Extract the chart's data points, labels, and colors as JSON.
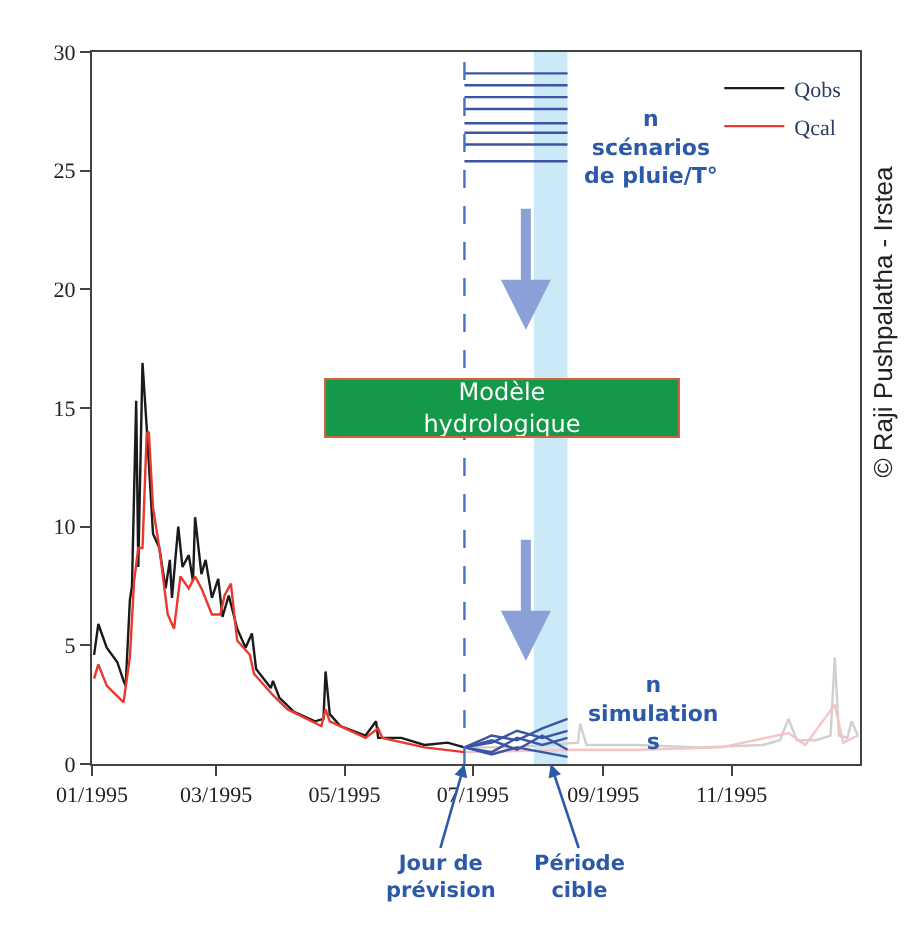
{
  "chart_data": {
    "type": "line",
    "xlim": [
      "1995-01-01",
      "1996-01-01"
    ],
    "xticks": [
      {
        "value": "1995-01-01",
        "label": "01/1995"
      },
      {
        "value": "1995-03-01",
        "label": "03/1995"
      },
      {
        "value": "1995-05-01",
        "label": "05/1995"
      },
      {
        "value": "1995-07-01",
        "label": "07/1995"
      },
      {
        "value": "1995-09-01",
        "label": "09/1995"
      },
      {
        "value": "1995-11-01",
        "label": "11/1995"
      }
    ],
    "ylim": [
      0,
      30
    ],
    "yticks": [
      0,
      5,
      10,
      15,
      20,
      25,
      30
    ],
    "grid": false,
    "legend": "top right",
    "line_style": "solid",
    "marker": "none",
    "series": [
      {
        "name": "Qobs",
        "color": "#1a1a1a",
        "x": [
          "1995-01-02",
          "1995-01-04",
          "1995-01-08",
          "1995-01-13",
          "1995-01-16",
          "1995-01-17",
          "1995-01-19",
          "1995-01-20",
          "1995-01-22",
          "1995-01-23",
          "1995-01-25",
          "1995-01-27",
          "1995-01-30",
          "1995-02-02",
          "1995-02-05",
          "1995-02-07",
          "1995-02-08",
          "1995-02-11",
          "1995-02-13",
          "1995-02-16",
          "1995-02-18",
          "1995-02-19",
          "1995-02-22",
          "1995-02-24",
          "1995-02-27",
          "1995-03-02",
          "1995-03-04",
          "1995-03-07",
          "1995-03-11",
          "1995-03-15",
          "1995-03-18",
          "1995-03-20",
          "1995-03-27",
          "1995-03-28",
          "1995-03-31",
          "1995-04-07",
          "1995-04-17",
          "1995-04-21",
          "1995-04-22",
          "1995-04-24",
          "1995-04-29",
          "1995-05-11",
          "1995-05-16",
          "1995-05-17",
          "1995-05-28",
          "1995-06-08",
          "1995-06-19",
          "1995-06-27"
        ],
        "values": [
          4.6,
          5.9,
          4.9,
          4.3,
          3.5,
          3.3,
          6.9,
          7.5,
          15.3,
          8.3,
          16.9,
          14.2,
          9.7,
          9.1,
          7.4,
          8.6,
          7.0,
          10.0,
          8.3,
          8.8,
          7.7,
          10.4,
          8.0,
          8.6,
          7.0,
          7.8,
          6.2,
          7.1,
          5.7,
          4.9,
          5.5,
          4.0,
          3.2,
          3.5,
          2.8,
          2.2,
          1.8,
          1.9,
          3.9,
          2.1,
          1.6,
          1.2,
          1.8,
          1.1,
          1.1,
          0.8,
          0.9,
          0.7
        ]
      },
      {
        "name": "Qcal",
        "color": "#e8392f",
        "x": [
          "1995-01-02",
          "1995-01-04",
          "1995-01-08",
          "1995-01-16",
          "1995-01-19",
          "1995-01-21",
          "1995-01-23",
          "1995-01-25",
          "1995-01-27",
          "1995-01-28",
          "1995-01-30",
          "1995-02-02",
          "1995-02-06",
          "1995-02-09",
          "1995-02-12",
          "1995-02-16",
          "1995-02-19",
          "1995-02-22",
          "1995-02-27",
          "1995-03-03",
          "1995-03-05",
          "1995-03-08",
          "1995-03-11",
          "1995-03-17",
          "1995-03-19",
          "1995-03-28",
          "1995-04-04",
          "1995-04-20",
          "1995-04-22",
          "1995-04-24",
          "1995-05-11",
          "1995-05-17",
          "1995-05-19",
          "1995-06-08",
          "1995-06-27"
        ],
        "values": [
          3.6,
          4.2,
          3.3,
          2.6,
          4.5,
          7.7,
          9.1,
          9.1,
          13.9,
          14.0,
          10.8,
          9.1,
          6.3,
          5.7,
          7.9,
          7.4,
          7.9,
          7.4,
          6.3,
          6.3,
          7.1,
          7.6,
          5.2,
          4.6,
          3.8,
          2.9,
          2.3,
          1.6,
          2.3,
          1.8,
          1.1,
          1.5,
          1.1,
          0.7,
          0.5
        ]
      },
      {
        "color": "#d0d0d0",
        "x": [
          "1995-06-27",
          "1995-07-19",
          "1995-08-20",
          "1995-08-21",
          "1995-08-24",
          "1995-09-17",
          "1995-10-17",
          "1995-11-16",
          "1995-11-24",
          "1995-11-28",
          "1995-12-02",
          "1995-12-11",
          "1995-12-18",
          "1995-12-20",
          "1995-12-22",
          "1995-12-26",
          "1995-12-28",
          "1995-12-31"
        ],
        "values": [
          0.7,
          0.7,
          0.9,
          1.7,
          0.8,
          0.8,
          0.7,
          0.8,
          1.0,
          1.9,
          1.0,
          1.0,
          1.2,
          4.5,
          1.2,
          1.1,
          1.8,
          1.2
        ]
      },
      {
        "color": "#f6c4c4",
        "x": [
          "1995-06-27",
          "1995-08-20",
          "1995-09-17",
          "1995-10-27",
          "1995-11-28",
          "1995-12-06",
          "1995-12-20",
          "1995-12-24",
          "1995-12-31"
        ],
        "values": [
          0.5,
          0.6,
          0.6,
          0.7,
          1.3,
          0.8,
          2.5,
          0.9,
          1.2
        ]
      },
      {
        "color": "#3b55a4",
        "x": [
          "1995-06-27",
          "1995-08-15"
        ],
        "values": [
          29.1,
          29.1
        ]
      },
      {
        "color": "#3b55a4",
        "x": [
          "1995-06-27",
          "1995-08-15"
        ],
        "values": [
          28.6,
          28.6
        ]
      },
      {
        "color": "#3b55a4",
        "x": [
          "1995-06-27",
          "1995-08-15"
        ],
        "values": [
          28.1,
          28.1
        ]
      },
      {
        "color": "#3b55a4",
        "x": [
          "1995-06-27",
          "1995-08-15"
        ],
        "values": [
          27.6,
          27.6
        ]
      },
      {
        "color": "#3b55a4",
        "x": [
          "1995-06-27",
          "1995-08-15"
        ],
        "values": [
          27.0,
          27.0
        ]
      },
      {
        "color": "#3b55a4",
        "x": [
          "1995-06-27",
          "1995-08-15"
        ],
        "values": [
          26.6,
          26.6
        ]
      },
      {
        "color": "#3b55a4",
        "x": [
          "1995-06-27",
          "1995-08-15"
        ],
        "values": [
          26.1,
          26.1
        ]
      },
      {
        "color": "#3b55a4",
        "x": [
          "1995-06-27",
          "1995-08-15"
        ],
        "values": [
          25.4,
          25.4
        ]
      },
      {
        "color": "#3b55a4",
        "x": [
          "1995-06-27",
          "1995-07-10",
          "1995-07-22",
          "1995-08-03",
          "1995-08-15"
        ],
        "values": [
          0.7,
          1.2,
          1.0,
          1.5,
          1.9
        ]
      },
      {
        "color": "#3b55a4",
        "x": [
          "1995-06-27",
          "1995-07-10",
          "1995-07-22",
          "1995-08-03",
          "1995-08-15"
        ],
        "values": [
          0.7,
          0.9,
          1.4,
          1.1,
          1.4
        ]
      },
      {
        "color": "#3b55a4",
        "x": [
          "1995-06-27",
          "1995-07-10",
          "1995-07-22",
          "1995-08-03",
          "1995-08-15"
        ],
        "values": [
          0.7,
          0.5,
          1.1,
          0.8,
          1.1
        ]
      },
      {
        "color": "#3b55a4",
        "x": [
          "1995-06-27",
          "1995-07-10",
          "1995-07-22",
          "1995-08-03",
          "1995-08-15"
        ],
        "values": [
          0.7,
          1.0,
          0.6,
          1.2,
          0.6
        ]
      },
      {
        "color": "#3b55a4",
        "x": [
          "1995-06-27",
          "1995-07-10",
          "1995-07-22",
          "1995-08-03",
          "1995-08-15"
        ],
        "values": [
          0.7,
          0.4,
          0.7,
          0.5,
          0.3
        ]
      }
    ],
    "ref_lines": [
      {
        "axis": "x",
        "value": "1995-06-27",
        "color": "#4a6fc0",
        "line_style": "dashed"
      }
    ],
    "bands": [
      {
        "axis": "x",
        "from": "1995-07-30",
        "to": "1995-08-15",
        "color": "#bfe3f5"
      }
    ],
    "annotations": [
      "Modèle\nhydrologique",
      "© Raji Pushpalatha - Irstea",
      "n\nscénarios\nde pluie/T°",
      "n\nsimulation\ns",
      {
        "text": "Jour de\nprévision",
        "x": "1995-06-27",
        "y": 0
      },
      {
        "text": "Période\ncible",
        "x": "1995-08-07",
        "y": 0
      }
    ]
  }
}
